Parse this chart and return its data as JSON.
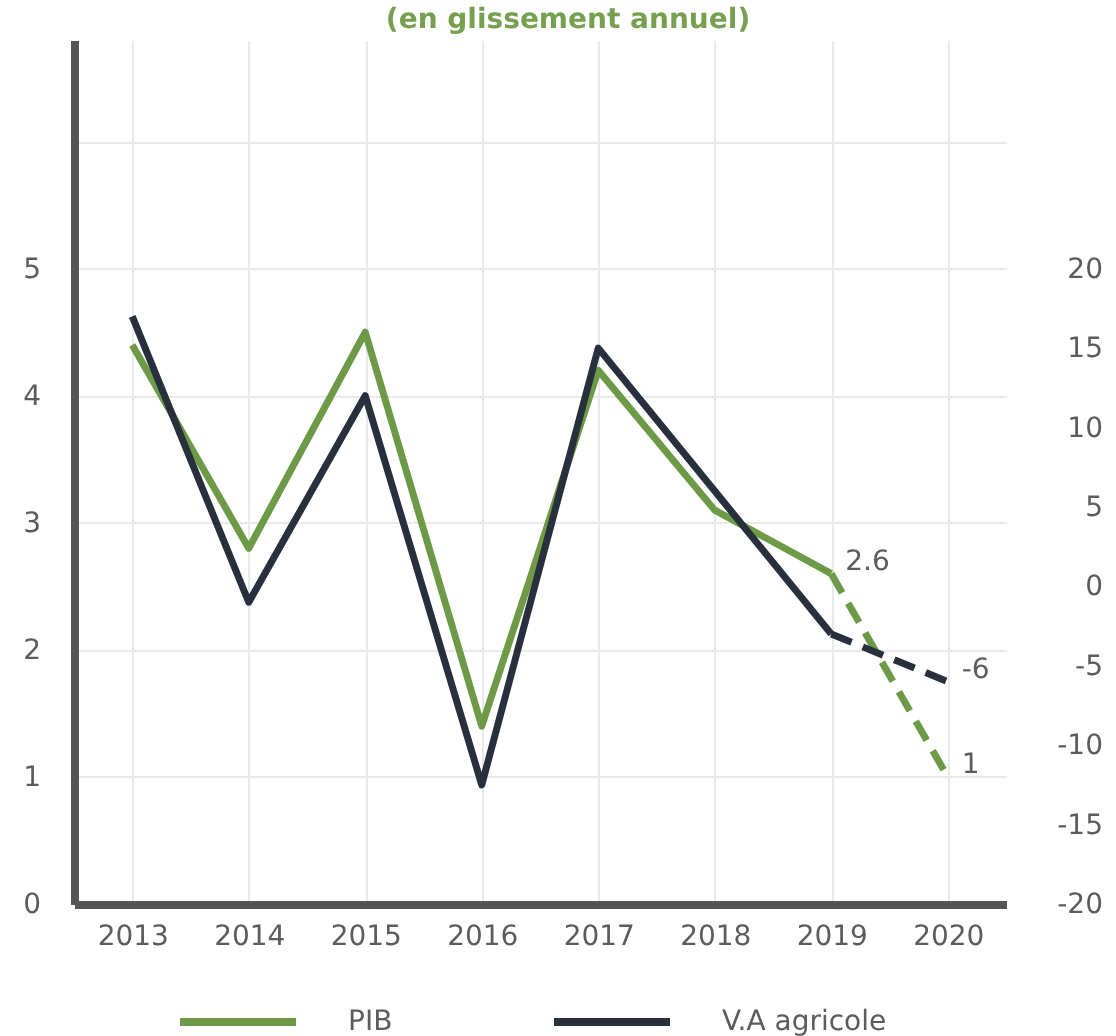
{
  "chart_data": {
    "type": "line",
    "title": "(en glissement annuel)",
    "categories": [
      "2013",
      "2014",
      "2015",
      "2016",
      "2017",
      "2018",
      "2019",
      "2020"
    ],
    "series": [
      {
        "name": "PIB",
        "color": "#6d9a46",
        "values": [
          4.4,
          2.8,
          4.5,
          1.4,
          4.2,
          3.1,
          2.6,
          null
        ],
        "value_labels": [
          null,
          null,
          null,
          null,
          null,
          null,
          "2.6",
          null
        ]
      },
      {
        "color": "#6d9a46",
        "line_style": "dashed",
        "values": [
          null,
          null,
          null,
          null,
          null,
          null,
          2.6,
          1
        ],
        "value_labels": [
          null,
          null,
          null,
          null,
          null,
          null,
          null,
          "1"
        ]
      },
      {
        "name": "V.A agricole",
        "color": "#28303d",
        "axis": "y2",
        "values": [
          17,
          -1,
          12,
          -12.5,
          15,
          6,
          -3,
          null
        ]
      },
      {
        "color": "#28303d",
        "axis": "y2",
        "line_style": "dashed",
        "values": [
          null,
          null,
          null,
          null,
          null,
          null,
          -3,
          -6
        ],
        "value_labels": [
          null,
          null,
          null,
          null,
          null,
          null,
          null,
          "-6"
        ]
      }
    ],
    "ylim": [
      0,
      6.8
    ],
    "yticks": [
      0,
      1,
      2,
      3,
      4,
      5,
      {
        "value": 6,
        "label": null
      }
    ],
    "y2lim": [
      -20,
      34.4
    ],
    "y2ticks": [
      -20,
      -15,
      -10,
      -5,
      0,
      5,
      10,
      15,
      20
    ],
    "grid": true,
    "legend": "bottom",
    "line_style": "solid",
    "marker": "none"
  }
}
